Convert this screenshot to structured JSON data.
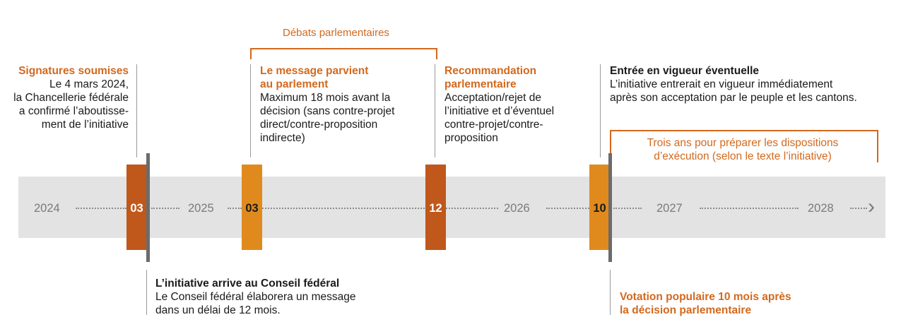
{
  "colors": {
    "dark_orange": "#c0581b",
    "orange": "#e08a1e",
    "accent_text": "#d2691e",
    "band": "#e3e3e3",
    "marker_bar": "#6b6b6b"
  },
  "top_bracket": {
    "label": "Débats parlementaires"
  },
  "events": {
    "signatures": {
      "title": "Signatures soumises",
      "lines": [
        "Le 4 mars 2024,",
        "la Chancellerie fédérale",
        "a confirmé l’aboutisse-",
        "ment de l’initiative"
      ]
    },
    "message": {
      "title_lines": [
        "Le message parvient",
        "au parlement"
      ],
      "lines": [
        "Maximum 18 mois avant la",
        "décision (sans contre-projet",
        "direct/contre-proposition",
        "indirecte)"
      ]
    },
    "recommandation": {
      "title_lines": [
        "Recommandation",
        "parlementaire"
      ],
      "lines": [
        "Acceptation/rejet de",
        "l’initiative et d’éventuel",
        "contre-projet/contre-",
        "proposition"
      ]
    },
    "entree": {
      "title": "Entrée en vigueur éventuelle",
      "lines": [
        "L’initiative entrerait en vigueur immédiatement",
        "après son acceptation par le peuple et les cantons."
      ]
    },
    "trois_ans": {
      "lines": [
        "Trois ans pour préparer les dispositions",
        "d’exécution (selon le texte l’initiative)"
      ]
    },
    "conseil": {
      "title": "L’initiative arrive au Conseil fédéral",
      "lines": [
        "Le Conseil fédéral élaborera un message",
        "dans un délai de 12 mois."
      ]
    },
    "votation": {
      "title_lines": [
        "Votation populaire 10 mois après",
        "la décision parlementaire"
      ]
    }
  },
  "timeline": {
    "years": [
      "2024",
      "2025",
      "2026",
      "2027",
      "2028"
    ],
    "markers": [
      "03",
      "03",
      "12",
      "10"
    ],
    "arrow": "›"
  }
}
